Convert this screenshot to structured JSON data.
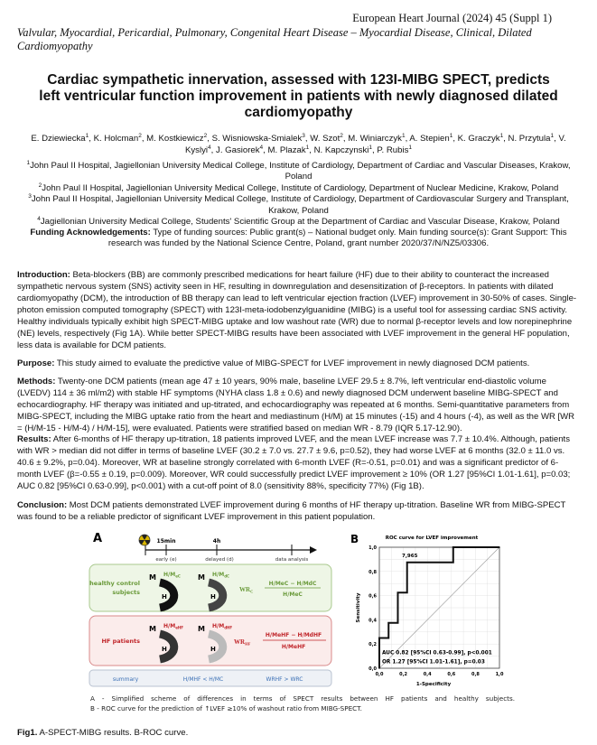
{
  "header": {
    "journal": "European Heart Journal (2024) 45 (Suppl 1)",
    "category": "Valvular, Myocardial, Pericardial, Pulmonary, Congenital Heart Disease – Myocardial Disease, Clinical, Dilated Cardiomyopathy"
  },
  "title": "Cardiac sympathetic innervation, assessed with 123I-MIBG SPECT, predicts left ventricular function improvement in patients with newly diagnosed dilated cardiomyopathy",
  "authors": [
    {
      "name": "E. Dziewiecka",
      "aff": "1"
    },
    {
      "name": "K. Holcman",
      "aff": "2"
    },
    {
      "name": "M. Kostkiewicz",
      "aff": "2"
    },
    {
      "name": "S. Wisniowska-Smialek",
      "aff": "3"
    },
    {
      "name": "W. Szot",
      "aff": "2"
    },
    {
      "name": "M. Winiarczyk",
      "aff": "1"
    },
    {
      "name": "A. Stepien",
      "aff": "1"
    },
    {
      "name": "K. Graczyk",
      "aff": "1"
    },
    {
      "name": "N. Przytula",
      "aff": "1"
    },
    {
      "name": "V. Kyslyi",
      "aff": "4"
    },
    {
      "name": "J. Gasiorek",
      "aff": "4"
    },
    {
      "name": "M. Plazak",
      "aff": "1"
    },
    {
      "name": "N. Kapczynski",
      "aff": "1"
    },
    {
      "name": "P. Rubis",
      "aff": "1"
    }
  ],
  "affiliations": [
    {
      "num": "1",
      "text": "John Paul II Hospital, Jagiellonian University Medical College, Institute of Cardiology, Department of Cardiac and Vascular Diseases, Krakow, Poland"
    },
    {
      "num": "2",
      "text": "John Paul II Hospital, Jagiellonian University Medical College, Institute of Cardiology, Department of Nuclear Medicine, Krakow, Poland"
    },
    {
      "num": "3",
      "text": "John Paul II Hospital, Jagiellonian University Medical College, Institute of Cardiology, Department of Cardiovascular Surgery and Transplant, Krakow, Poland"
    },
    {
      "num": "4",
      "text": "Jagiellonian University Medical College, Students' Scientific Group at the Department of Cardiac and Vascular Disease, Krakow, Poland"
    }
  ],
  "funding": {
    "label": "Funding Acknowledgements:",
    "text": " Type of funding sources: Public grant(s) – National budget only. Main funding source(s): Grant Support: This research was funded by the National Science Centre, Poland, grant number 2020/37/N/NZ5/03306."
  },
  "sections": [
    {
      "label": "Introduction:",
      "text": " Beta-blockers (BB) are commonly prescribed medications for heart failure (HF) due to their ability to counteract the increased sympathetic nervous system (SNS) activity seen in HF, resulting in downregulation and desensitization of β-receptors. In patients with dilated cardiomyopathy (DCM), the introduction of BB therapy can lead to left ventricular ejection fraction (LVEF) improvement in 30-50% of cases. Single-photon emission computed tomography (SPECT) with 123I-meta-iodobenzylguanidine (MIBG) is a useful tool for assessing cardiac SNS activity. Healthy individuals typically exhibit high SPECT-MIBG uptake and low washout rate (WR) due to normal β-receptor levels and low norepinephrine (NE) levels, respectively (Fig 1A). While better SPECT-MIBG results have been associated with LVEF improvement in the general HF population, less data is available for DCM patients."
    },
    {
      "label": "Purpose:",
      "text": " This study aimed to evaluate the predictive value of MIBG-SPECT for LVEF improvement in newly diagnosed DCM patients."
    },
    {
      "label": "Methods:",
      "text": " Twenty-one DCM patients (mean age 47 ± 10 years, 90% male, baseline LVEF 29.5 ± 8.7%, left ventricular end-diastolic volume (LVEDV) 114 ± 36 ml/m2) with stable HF symptoms (NYHA class 1.8 ± 0.6) and newly diagnosed DCM underwent baseline MIBG-SPECT and echocardiography. HF therapy was initiated and up-titrated, and echocardiography was repeated at 6 months. Semi-quantitative parameters from MIBG-SPECT, including the MIBG uptake ratio from the heart and mediastinum (H/M) at 15 minutes (-15) and 4 hours (-4), as well as the WR [WR = (H/M-15 - H/M-4) / H/M-15], were evaluated. Patients were stratified based on median WR - 8.79 (IQR 5.17-12.90)."
    },
    {
      "label": "Results:",
      "text": " After 6-months of HF therapy up-titration, 18 patients improved LVEF, and the mean LVEF increase was 7.7 ± 10.4%. Although, patients with WR > median did not differ in terms of baseline LVEF (30.2 ± 7.0 vs. 27.7 ± 9.6, p=0.52), they had worse LVEF at 6 months (32.0 ± 11.0 vs. 40.6 ± 9.2%, p=0.04). Moreover, WR at baseline strongly correlated with 6-month LVEF (R=-0.51, p=0.01) and was a significant predictor of 6-month LVEF (β=-0.55 ± 0.19, p=0.009). Moreover, WR could successfully predict LVEF improvement ≥ 10% (OR 1.27 [95%CI 1.01-1.61], p=0.03; AUC 0.82 [95%CI 0.63-0.99], p<0.001) with a cut-off point of 8.0 (sensitivity 88%, specificity 77%) (Fig 1B)."
    },
    {
      "label": "Conclusion:",
      "text": " Most DCM patients demonstrated LVEF improvement during 6 months of HF therapy up-titration. Baseline WR from MIBG-SPECT was found to be a reliable predictor of significant LVEF improvement in this patient population."
    }
  ],
  "figure": {
    "panel_a": {
      "label": "A",
      "icon": "radiation-icon",
      "timeline": {
        "t1": "15min",
        "t2": "4h",
        "early": "early (e)",
        "delayed": "delayed (d)",
        "analysis": "data analysis"
      },
      "healthy": {
        "label1": "healthy control",
        "label2": "subjects",
        "hm": "H/M",
        "sub_e": "eC",
        "sub_d": "dC",
        "wr": "WR",
        "wr_sub": "C",
        "num": "H/MeC − H/MdC",
        "den": "H/MeC",
        "color": "#6a9a3a",
        "bg": "#eef6e6"
      },
      "hf": {
        "label": "HF patients",
        "hm": "H/M",
        "sub_e": "eHF",
        "sub_d": "dHF",
        "wr": "WR",
        "wr_sub": "HF",
        "num": "H/MeHF − H/MdHF",
        "den": "H/MeHF",
        "color": "#c0252a",
        "bg": "#fbeceb"
      },
      "m": "M",
      "h": "H",
      "summary": {
        "label": "summary",
        "rel1": "H/MHF < H/MC",
        "rel2": "WRHF > WRC",
        "color": "#3a6fb5",
        "bg": "#eef1f6"
      }
    },
    "panel_b": {
      "label": "B"
    },
    "caption_a": "A - Simplified scheme of differences in terms of SPECT results between HF patients and healthy subjects.",
    "caption_b": "B - ROC curve for the prediction of ↑LVEF ≥10% of washout ratio from MIBG-SPECT.",
    "caption_label": "Fig1.",
    "caption": " A-SPECT-MIBG results. B-ROC curve."
  },
  "chart_data": {
    "type": "line",
    "title": "ROC curve for LVEF improvement",
    "xlabel": "1-Specificity",
    "ylabel": "Sensitivity",
    "xlim": [
      0,
      1
    ],
    "ylim": [
      0,
      1
    ],
    "xticks": [
      "0,0",
      "0,2",
      "0,4",
      "0,6",
      "0,8",
      "1,0"
    ],
    "yticks": [
      "0,0",
      "0,2",
      "0,4",
      "0,6",
      "0,8",
      "1,0"
    ],
    "grid": true,
    "series": [
      {
        "x": [
          0,
          0,
          0.077,
          0.077,
          0.154,
          0.154,
          0.231,
          0.231,
          0.615,
          0.615,
          1
        ],
        "y": [
          0,
          0.25,
          0.25,
          0.375,
          0.375,
          0.625,
          0.625,
          0.875,
          0.875,
          1,
          1
        ]
      },
      {
        "x": [
          0,
          1
        ],
        "y": [
          0,
          1
        ]
      }
    ],
    "point_label": {
      "text": "7,965",
      "x": 0.231,
      "y": 0.875
    },
    "annotations": [
      "AUC 0.82 [95%CI 0.63-0.99], p<0.001",
      "OR 1.27 [95%CI 1.01-1.61], p=0.03"
    ]
  }
}
